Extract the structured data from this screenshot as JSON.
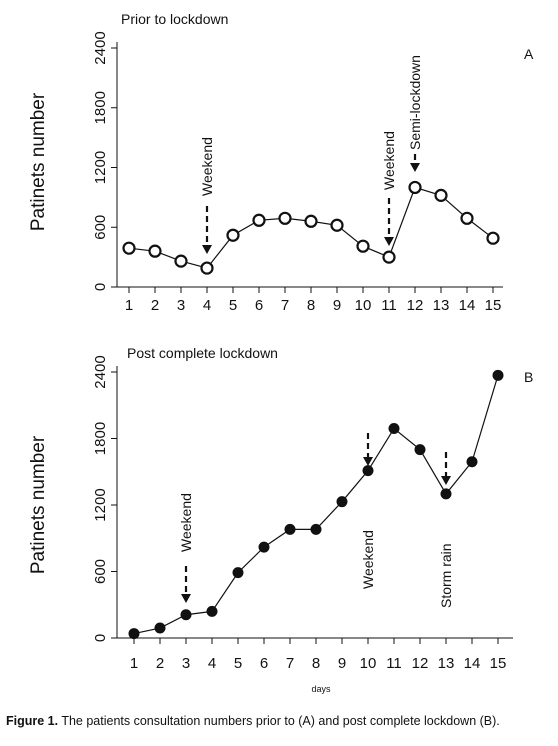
{
  "chart_data": [
    {
      "type": "line",
      "panel_label": "A",
      "title": "Prior to lockdown",
      "xlabel": "",
      "ylabel": "Patinets number",
      "categories": [
        "1",
        "2",
        "3",
        "4",
        "5",
        "6",
        "7",
        "8",
        "9",
        "10",
        "11",
        "12",
        "13",
        "14",
        "15"
      ],
      "values": [
        390,
        360,
        260,
        190,
        520,
        670,
        690,
        660,
        620,
        410,
        300,
        1000,
        920,
        690,
        490
      ],
      "ylim": [
        0,
        2400
      ],
      "yticks": [
        "0",
        "600",
        "1200",
        "1800",
        "2400"
      ],
      "marker": "open-circle",
      "grid": false,
      "annotations": [
        {
          "text": "Weekend",
          "x": "4",
          "arrow": "dashed"
        },
        {
          "text": "Weekend",
          "x": "11",
          "arrow": "dashed"
        },
        {
          "text": "Semi-lockdown",
          "x": "12",
          "arrow": "dashed"
        }
      ]
    },
    {
      "type": "line",
      "panel_label": "B",
      "title": "Post complete lockdown",
      "xlabel": "days",
      "ylabel": "Patinets number",
      "categories": [
        "1",
        "2",
        "3",
        "4",
        "5",
        "6",
        "7",
        "8",
        "9",
        "10",
        "11",
        "12",
        "13",
        "14",
        "15"
      ],
      "values": [
        40,
        90,
        210,
        240,
        590,
        820,
        980,
        980,
        1230,
        1510,
        1890,
        1700,
        1300,
        1590,
        2370
      ],
      "ylim": [
        0,
        2400
      ],
      "yticks": [
        "0",
        "600",
        "1200",
        "1800",
        "2400"
      ],
      "marker": "filled-circle",
      "grid": false,
      "annotations": [
        {
          "text": "Weekend",
          "x": "3",
          "arrow": "dashed"
        },
        {
          "text": "Weekend",
          "x": "10",
          "arrow": "dashed"
        },
        {
          "text": "Storm rain",
          "x": "13",
          "arrow": "dashed"
        }
      ]
    }
  ],
  "caption": {
    "label": "Figure 1.",
    "text": " The patients consultation numbers prior to (A) and post complete lockdown (B)."
  },
  "colors": {
    "line": "#111111",
    "marker_fill_open": "#ffffff",
    "marker_fill_filled": "#111111"
  }
}
